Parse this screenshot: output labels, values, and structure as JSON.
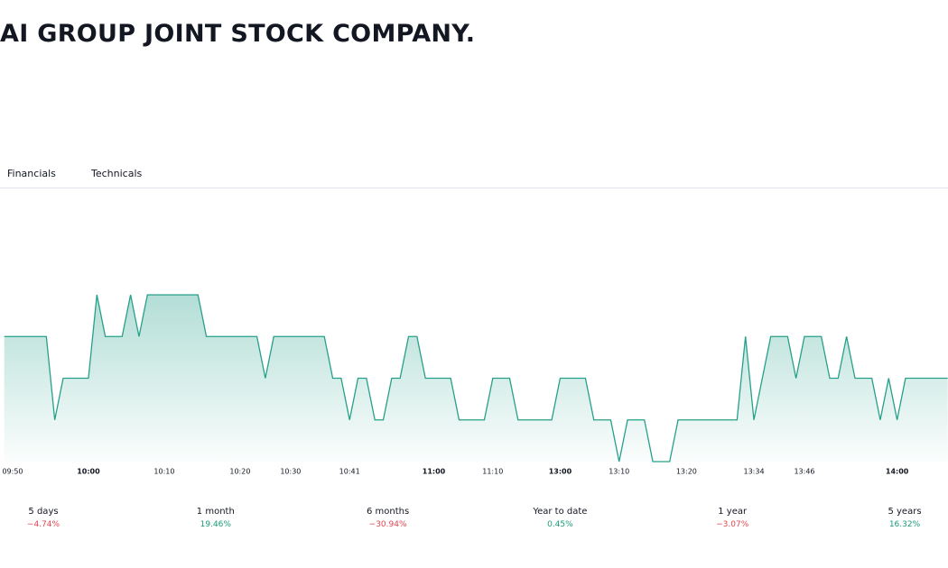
{
  "header": {
    "title": "AI GROUP JOINT STOCK COMPANY."
  },
  "tabs": [
    "Financials",
    "Technicals"
  ],
  "chart_data": {
    "type": "area",
    "series": [
      {
        "color": "#26a08a",
        "values": [
          3,
          3,
          3,
          3,
          3,
          3,
          1,
          2,
          2,
          2,
          2,
          4,
          3,
          3,
          3,
          4,
          3,
          4,
          4,
          4,
          4,
          4,
          4,
          4,
          3,
          3,
          3,
          3,
          3,
          3,
          3,
          2,
          3,
          3,
          3,
          3,
          3,
          3,
          3,
          2,
          2,
          1,
          2,
          2,
          1,
          1,
          2,
          2,
          3,
          3,
          2,
          2,
          2,
          2,
          1,
          1,
          1,
          1,
          2,
          2,
          2,
          1,
          1,
          1,
          1,
          1,
          2,
          2,
          2,
          2,
          1,
          1,
          1,
          0,
          1,
          1,
          1,
          0,
          0,
          0,
          1,
          1,
          1,
          1,
          1,
          1,
          1,
          1,
          3,
          1,
          2,
          3,
          3,
          3,
          2,
          3,
          3,
          3,
          2,
          2,
          3,
          2,
          2,
          2,
          1,
          2,
          1,
          2,
          2,
          2,
          2,
          2,
          2
        ]
      }
    ],
    "xlim": [
      0,
      112
    ],
    "xticks": [
      {
        "value": 1,
        "label": "09:50"
      },
      {
        "value": 10,
        "label": "10:00"
      },
      {
        "value": 19,
        "label": "10:10"
      },
      {
        "value": 28,
        "label": "10:20"
      },
      {
        "value": 34,
        "label": "10:30"
      },
      {
        "value": 41,
        "label": "10:41"
      },
      {
        "value": 51,
        "label": "11:00"
      },
      {
        "value": 58,
        "label": "11:10"
      },
      {
        "value": 66,
        "label": "13:00"
      },
      {
        "value": 73,
        "label": "13:10"
      },
      {
        "value": 81,
        "label": "13:20"
      },
      {
        "value": 89,
        "label": "13:34"
      },
      {
        "value": 95,
        "label": "13:46"
      },
      {
        "value": 106,
        "label": "14:00"
      }
    ],
    "ylim": [
      0,
      4
    ]
  },
  "performance": [
    {
      "period": "5 days",
      "change": "−4.74%"
    },
    {
      "period": "1 month",
      "change": "19.46%"
    },
    {
      "period": "6 months",
      "change": "−30.94%"
    },
    {
      "period": "Year to date",
      "change": "0.45%"
    },
    {
      "period": "1 year",
      "change": "−3.07%"
    },
    {
      "period": "5 years",
      "change": "16.32%"
    }
  ]
}
